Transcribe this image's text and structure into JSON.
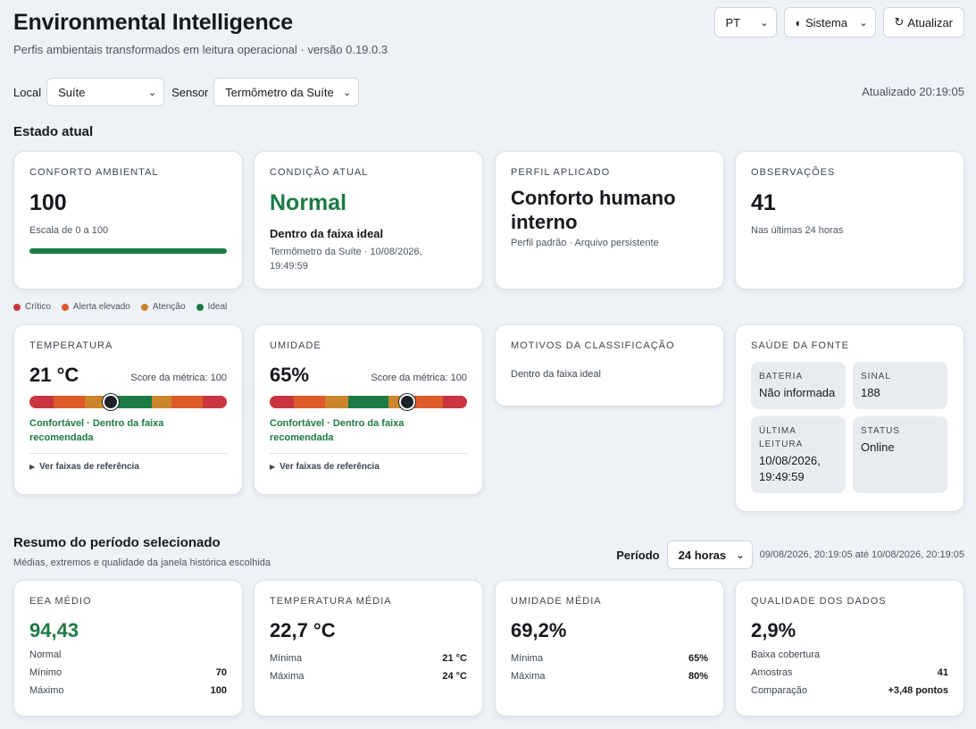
{
  "header": {
    "title": "Environmental Intelligence",
    "subtitle": "Perfis ambientais transformados em leitura operacional · versão 0.19.0.3"
  },
  "controls": {
    "language": "PT",
    "theme": "Sistema",
    "refresh": "Atualizar"
  },
  "filters": {
    "local_label": "Local",
    "local_value": "Suíte",
    "sensor_label": "Sensor",
    "sensor_value": "Termômetro da Suíte",
    "updated": "Atualizado 20:19:05"
  },
  "current": {
    "section_title": "Estado atual",
    "comfort": {
      "label": "Conforto ambiental",
      "value": "100",
      "note": "Escala de 0 a 100",
      "fill": 1.0
    },
    "condition": {
      "label": "Condição atual",
      "value": "Normal",
      "desc": "Dentro da faixa ideal",
      "meta": "Termômetro da Suíte · 10/08/2026, 19:49:59"
    },
    "profile": {
      "label": "Perfil aplicado",
      "value": "Conforto humano interno",
      "meta": "Perfil padrão · Arquivo persistente"
    },
    "observations": {
      "label": "Observações",
      "value": "41",
      "note": "Nas últimas 24 horas"
    }
  },
  "legend": [
    {
      "label": "Crítico",
      "color": "#c9343f"
    },
    {
      "label": "Alerta elevado",
      "color": "#de5a2a"
    },
    {
      "label": "Atenção",
      "color": "#cc852c"
    },
    {
      "label": "Ideal",
      "color": "#1c7a45"
    }
  ],
  "metrics": {
    "temperature": {
      "label": "Temperatura",
      "value": "21 °C",
      "score": "Score da métrica: 100",
      "status": "Confortável · Dentro da faixa recomendada",
      "ref": "Ver faixas de referência",
      "position": 0.41
    },
    "humidity": {
      "label": "Umidade",
      "value": "65%",
      "score": "Score da métrica: 100",
      "status": "Confortável · Dentro da faixa recomendada",
      "ref": "Ver faixas de referência",
      "position": 0.695
    }
  },
  "reasons": {
    "label": "Motivos da classificação",
    "text": "Dentro da faixa ideal"
  },
  "health": {
    "label": "Saúde da fonte",
    "battery_label": "Bateria",
    "battery_value": "Não informada",
    "signal_label": "Sinal",
    "signal_value": "188",
    "last_label": "Última leitura",
    "last_value": "10/08/2026, 19:49:59",
    "status_label": "Status",
    "status_value": "Online"
  },
  "summary": {
    "section_title": "Resumo do período selecionado",
    "subtitle": "Médias, extremos e qualidade da janela histórica escolhida",
    "period_label": "Período",
    "period_value": "24 horas",
    "range": "09/08/2026, 20:19:05 até 10/08/2026, 20:19:05",
    "eea": {
      "label": "EEA médio",
      "value": "94,43",
      "note": "Normal",
      "min_label": "Mínimo",
      "min": "70",
      "max_label": "Máximo",
      "max": "100"
    },
    "temp": {
      "label": "Temperatura média",
      "value": "22,7 °C",
      "min_label": "Mínima",
      "min": "21 °C",
      "max_label": "Máxima",
      "max": "24 °C"
    },
    "hum": {
      "label": "Umidade média",
      "value": "69,2%",
      "min_label": "Mínima",
      "min": "65%",
      "max_label": "Máxima",
      "max": "80%"
    },
    "quality": {
      "label": "Qualidade dos dados",
      "value": "2,9%",
      "note": "Baixa cobertura",
      "samples_label": "Amostras",
      "samples": "41",
      "comp_label": "Comparação",
      "comp": "+3,48 pontos"
    }
  }
}
